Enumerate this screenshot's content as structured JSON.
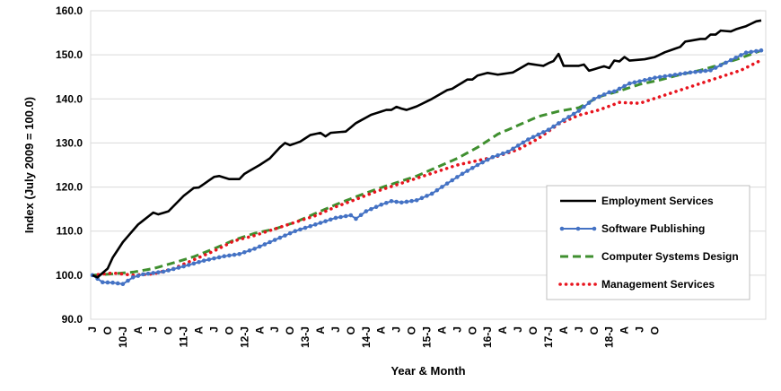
{
  "chart_data": {
    "type": "line",
    "title": "",
    "xlabel": "Year & Month",
    "ylabel": "Index (July 2009 = 100.0)",
    "ylim": [
      90,
      160
    ],
    "yticks": [
      "90.0",
      "100.0",
      "110.0",
      "120.0",
      "130.0",
      "140.0",
      "150.0",
      "160.0"
    ],
    "x_tick_labels": [
      "J",
      "O",
      "10-J",
      "A",
      "J",
      "O",
      "11-J",
      "A",
      "J",
      "O",
      "12-J",
      "A",
      "J",
      "O",
      "13-J",
      "A",
      "J",
      "O",
      "14-J",
      "A",
      "J",
      "O",
      "15-J",
      "A",
      "J",
      "O",
      "16-J",
      "A",
      "J",
      "O",
      "17-J",
      "A",
      "J",
      "O",
      "18-J",
      "A",
      "J",
      "O"
    ],
    "x_start": "2009-07",
    "x_end": "2018-11",
    "grid": "horizontal",
    "legend_position": "right",
    "series": [
      {
        "name": "Employment Services",
        "color": "#000000",
        "style": "solid",
        "anchors": [
          [
            0,
            100.0
          ],
          [
            1,
            99.5
          ],
          [
            3,
            101.5
          ],
          [
            4,
            104.0
          ],
          [
            6,
            107.5
          ],
          [
            9,
            111.5
          ],
          [
            12,
            114.2
          ],
          [
            13,
            113.8
          ],
          [
            15,
            114.5
          ],
          [
            18,
            118.0
          ],
          [
            20,
            119.8
          ],
          [
            21,
            119.9
          ],
          [
            23,
            121.5
          ],
          [
            24,
            122.3
          ],
          [
            25,
            122.5
          ],
          [
            27,
            121.8
          ],
          [
            29,
            121.8
          ],
          [
            30,
            123.0
          ],
          [
            33,
            125.0
          ],
          [
            35,
            126.5
          ],
          [
            37,
            129.0
          ],
          [
            38,
            130.0
          ],
          [
            39,
            129.5
          ],
          [
            41,
            130.3
          ],
          [
            43,
            131.8
          ],
          [
            45,
            132.3
          ],
          [
            46,
            131.5
          ],
          [
            47,
            132.3
          ],
          [
            50,
            132.6
          ],
          [
            52,
            134.5
          ],
          [
            55,
            136.4
          ],
          [
            58,
            137.5
          ],
          [
            59,
            137.5
          ],
          [
            60,
            138.2
          ],
          [
            61,
            137.8
          ],
          [
            62,
            137.5
          ],
          [
            64,
            138.3
          ],
          [
            67,
            140.0
          ],
          [
            70,
            142.0
          ],
          [
            71,
            142.3
          ],
          [
            74,
            144.4
          ],
          [
            75,
            144.4
          ],
          [
            76,
            145.3
          ],
          [
            78,
            145.9
          ],
          [
            80,
            145.5
          ],
          [
            83,
            146.0
          ],
          [
            86,
            148.0
          ],
          [
            89,
            147.5
          ],
          [
            90,
            148.1
          ],
          [
            91,
            148.6
          ],
          [
            92,
            150.2
          ],
          [
            93,
            147.5
          ],
          [
            96,
            147.5
          ],
          [
            97,
            147.8
          ],
          [
            98,
            146.4
          ],
          [
            101,
            147.4
          ],
          [
            102,
            147.0
          ],
          [
            103,
            148.7
          ],
          [
            104,
            148.5
          ],
          [
            105,
            149.5
          ],
          [
            106,
            148.7
          ],
          [
            109,
            149.0
          ],
          [
            111,
            149.5
          ],
          [
            113,
            150.6
          ],
          [
            116,
            151.8
          ],
          [
            117,
            153.0
          ],
          [
            120,
            153.6
          ],
          [
            121,
            153.6
          ],
          [
            122,
            154.6
          ],
          [
            123,
            154.6
          ],
          [
            124,
            155.5
          ],
          [
            126,
            155.3
          ],
          [
            127,
            155.8
          ],
          [
            129,
            156.5
          ],
          [
            131,
            157.6
          ],
          [
            132,
            157.8
          ]
        ]
      },
      {
        "name": "Software Publishing",
        "color": "#4472C4",
        "style": "dots-line",
        "anchors": [
          [
            0,
            100.0
          ],
          [
            2,
            98.4
          ],
          [
            4,
            98.3
          ],
          [
            6,
            98.0
          ],
          [
            8,
            99.5
          ],
          [
            10,
            100.2
          ],
          [
            14,
            100.8
          ],
          [
            18,
            102.0
          ],
          [
            22,
            103.3
          ],
          [
            26,
            104.3
          ],
          [
            29,
            104.8
          ],
          [
            32,
            106.0
          ],
          [
            36,
            108.0
          ],
          [
            40,
            110.0
          ],
          [
            44,
            111.5
          ],
          [
            48,
            113.0
          ],
          [
            51,
            113.6
          ],
          [
            52,
            112.8
          ],
          [
            54,
            114.5
          ],
          [
            57,
            116.0
          ],
          [
            59,
            116.8
          ],
          [
            61,
            116.5
          ],
          [
            64,
            117.0
          ],
          [
            67,
            118.5
          ],
          [
            70,
            120.8
          ],
          [
            73,
            123.0
          ],
          [
            76,
            125.0
          ],
          [
            79,
            126.8
          ],
          [
            82,
            128.0
          ],
          [
            86,
            130.8
          ],
          [
            90,
            133.0
          ],
          [
            93,
            135.2
          ],
          [
            96,
            137.3
          ],
          [
            99,
            140.0
          ],
          [
            102,
            141.5
          ],
          [
            103,
            141.7
          ],
          [
            106,
            143.5
          ],
          [
            108,
            144.0
          ],
          [
            111,
            144.8
          ],
          [
            114,
            145.3
          ],
          [
            118,
            146.0
          ],
          [
            122,
            146.5
          ],
          [
            126,
            148.8
          ],
          [
            129,
            150.5
          ],
          [
            132,
            151.0
          ]
        ]
      },
      {
        "name": "Computer Systems Design",
        "color": "#3F8F2F",
        "style": "dashed",
        "anchors": [
          [
            0,
            100.0
          ],
          [
            4,
            100.3
          ],
          [
            8,
            100.7
          ],
          [
            12,
            101.5
          ],
          [
            16,
            102.8
          ],
          [
            20,
            104.2
          ],
          [
            24,
            106.0
          ],
          [
            28,
            108.0
          ],
          [
            32,
            109.5
          ],
          [
            36,
            110.5
          ],
          [
            40,
            112.0
          ],
          [
            44,
            114.0
          ],
          [
            48,
            116.0
          ],
          [
            52,
            117.8
          ],
          [
            56,
            119.5
          ],
          [
            60,
            121.0
          ],
          [
            64,
            122.5
          ],
          [
            68,
            124.5
          ],
          [
            72,
            126.5
          ],
          [
            76,
            129.0
          ],
          [
            80,
            132.0
          ],
          [
            84,
            134.0
          ],
          [
            88,
            136.0
          ],
          [
            92,
            137.2
          ],
          [
            96,
            138.0
          ],
          [
            100,
            140.5
          ],
          [
            104,
            141.8
          ],
          [
            108,
            143.3
          ],
          [
            112,
            144.3
          ],
          [
            116,
            145.5
          ],
          [
            120,
            146.5
          ],
          [
            124,
            147.8
          ],
          [
            128,
            149.3
          ],
          [
            132,
            151.0
          ]
        ]
      },
      {
        "name": "Management Services",
        "color": "#E8141E",
        "style": "dotted",
        "anchors": [
          [
            0,
            100.0
          ],
          [
            4,
            100.5
          ],
          [
            8,
            100.0
          ],
          [
            12,
            100.3
          ],
          [
            16,
            101.5
          ],
          [
            20,
            103.5
          ],
          [
            24,
            105.5
          ],
          [
            28,
            107.8
          ],
          [
            32,
            109.0
          ],
          [
            36,
            110.5
          ],
          [
            40,
            112.0
          ],
          [
            44,
            113.5
          ],
          [
            48,
            115.5
          ],
          [
            52,
            117.2
          ],
          [
            56,
            119.0
          ],
          [
            60,
            120.5
          ],
          [
            64,
            122.0
          ],
          [
            68,
            123.5
          ],
          [
            72,
            125.0
          ],
          [
            76,
            126.0
          ],
          [
            80,
            127.0
          ],
          [
            84,
            128.5
          ],
          [
            88,
            131.0
          ],
          [
            92,
            134.3
          ],
          [
            96,
            136.3
          ],
          [
            100,
            137.5
          ],
          [
            104,
            139.2
          ],
          [
            108,
            139.0
          ],
          [
            112,
            140.5
          ],
          [
            116,
            142.0
          ],
          [
            120,
            143.5
          ],
          [
            124,
            145.0
          ],
          [
            128,
            146.5
          ],
          [
            132,
            148.8
          ]
        ]
      }
    ]
  }
}
